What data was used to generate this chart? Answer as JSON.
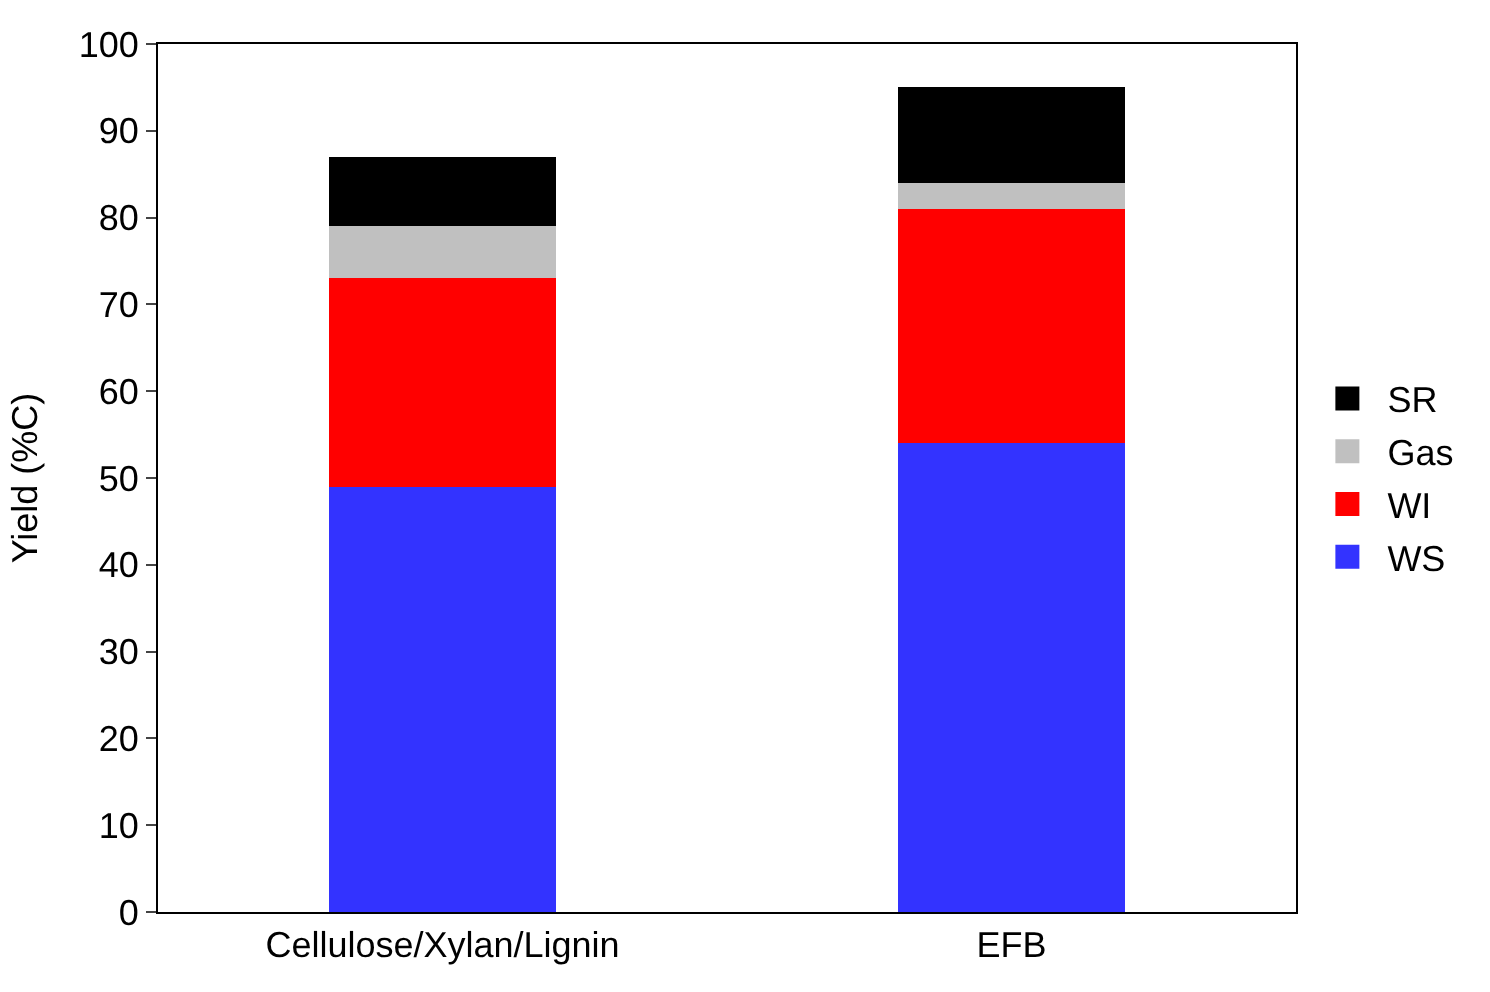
{
  "chart_data": {
    "type": "bar",
    "stacked": true,
    "ylabel": "Yield (%C)",
    "categories": [
      "Cellulose/Xylan/Lignin",
      "EFB"
    ],
    "series": [
      {
        "name": "WS",
        "color": "#3333ff",
        "values": [
          49,
          54
        ]
      },
      {
        "name": "WI",
        "color": "#ff0000",
        "values": [
          24,
          27
        ]
      },
      {
        "name": "Gas",
        "color": "#c0c0c0",
        "values": [
          6,
          3
        ]
      },
      {
        "name": "SR",
        "color": "#000000",
        "values": [
          8,
          11
        ]
      }
    ],
    "ylim": [
      0,
      100
    ],
    "yticks": [
      0,
      10,
      20,
      30,
      40,
      50,
      60,
      70,
      80,
      90,
      100
    ],
    "grid": false,
    "legend": "right"
  }
}
